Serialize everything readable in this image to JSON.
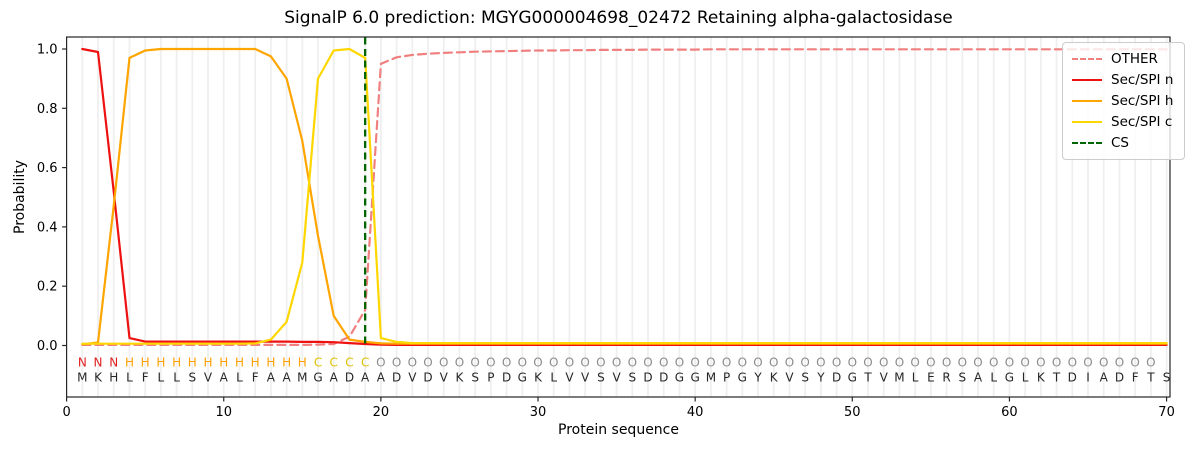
{
  "chart_data": {
    "type": "line",
    "title": "SignalP 6.0 prediction: MGYG000004698_02472 Retaining alpha-galactosidase",
    "xlabel": "Protein sequence",
    "ylabel": "Probability",
    "xlim": [
      0,
      70.3
    ],
    "ylim": [
      -0.174,
      1.041
    ],
    "x_ticks": [
      0,
      10,
      20,
      30,
      40,
      50,
      60,
      70
    ],
    "y_ticks": [
      "0.0",
      "0.2",
      "0.4",
      "0.6",
      "0.8",
      "1.0"
    ],
    "grid": "vertical line per residue",
    "legend_position": "upper right",
    "cs_position": 19,
    "cs_color": "#006400",
    "spine_color": "#262626",
    "grid_color": "#efefef",
    "sequence": "MKHLFLLSVALFAAMGADAADVDVKSPDGKLVVSVSDDGGMPGYKVSYDGTVMLERSALGLKTDIADFTS",
    "regions": "NNNHHHHHHHHHHHHCCCCOOOOOOOOOOOOOOOOOOOOOOOOOOOOOOOOOOOOOOOOOOOOOOOOOO",
    "region_colors": {
      "N": "#e02020",
      "H": "#ff9f00",
      "C": "#e0c000",
      "O": "#8c8c8c"
    },
    "sequence_color": "#262626",
    "legend": [
      "OTHER",
      "Sec/SPI n",
      "Sec/SPI h",
      "Sec/SPI c",
      "CS"
    ],
    "series": [
      {
        "name": "OTHER",
        "color": "#f08080",
        "dashed": true,
        "values": [
          0.002,
          0.002,
          0.002,
          0.002,
          0.002,
          0.002,
          0.002,
          0.002,
          0.002,
          0.002,
          0.002,
          0.002,
          0.002,
          0.002,
          0.002,
          0.003,
          0.005,
          0.03,
          0.12,
          0.95,
          0.972,
          0.98,
          0.984,
          0.987,
          0.989,
          0.991,
          0.992,
          0.993,
          0.994,
          0.995,
          0.995,
          0.996,
          0.996,
          0.997,
          0.997,
          0.997,
          0.998,
          0.998,
          0.998,
          0.998,
          0.999,
          0.999,
          0.999,
          0.999,
          0.999,
          0.999,
          0.999,
          0.999,
          0.999,
          0.999,
          0.999,
          0.999,
          0.999,
          0.999,
          0.999,
          0.999,
          0.999,
          0.999,
          0.999,
          0.999,
          0.999,
          0.999,
          0.999,
          0.999,
          0.999,
          0.999,
          0.999,
          0.999,
          0.999,
          0.999
        ]
      },
      {
        "name": "Sec/SPI n",
        "color": "#ee1111",
        "dashed": false,
        "values": [
          1.0,
          0.99,
          0.52,
          0.025,
          0.013,
          0.013,
          0.013,
          0.013,
          0.013,
          0.013,
          0.013,
          0.013,
          0.013,
          0.013,
          0.012,
          0.012,
          0.011,
          0.008,
          0.005,
          0.003,
          0.002,
          0.002,
          0.002,
          0.002,
          0.002,
          0.002,
          0.002,
          0.002,
          0.002,
          0.002,
          0.002,
          0.002,
          0.002,
          0.002,
          0.002,
          0.002,
          0.002,
          0.002,
          0.002,
          0.002,
          0.002,
          0.002,
          0.002,
          0.002,
          0.002,
          0.002,
          0.002,
          0.002,
          0.002,
          0.002,
          0.002,
          0.002,
          0.002,
          0.002,
          0.002,
          0.002,
          0.002,
          0.002,
          0.002,
          0.002,
          0.002,
          0.002,
          0.002,
          0.002,
          0.002,
          0.002,
          0.002,
          0.002,
          0.002,
          0.002
        ]
      },
      {
        "name": "Sec/SPI h",
        "color": "#ffa500",
        "dashed": false,
        "values": [
          0.004,
          0.01,
          0.47,
          0.97,
          0.995,
          1.0,
          1.0,
          1.0,
          1.0,
          1.0,
          1.0,
          1.0,
          0.975,
          0.9,
          0.69,
          0.37,
          0.1,
          0.02,
          0.012,
          0.007,
          0.006,
          0.006,
          0.006,
          0.006,
          0.006,
          0.006,
          0.006,
          0.006,
          0.006,
          0.006,
          0.006,
          0.006,
          0.006,
          0.006,
          0.006,
          0.006,
          0.006,
          0.006,
          0.006,
          0.006,
          0.006,
          0.006,
          0.006,
          0.006,
          0.006,
          0.006,
          0.006,
          0.006,
          0.006,
          0.006,
          0.006,
          0.006,
          0.006,
          0.006,
          0.006,
          0.006,
          0.006,
          0.006,
          0.006,
          0.006,
          0.006,
          0.006,
          0.006,
          0.006,
          0.006,
          0.006,
          0.006,
          0.006,
          0.006,
          0.006
        ]
      },
      {
        "name": "Sec/SPI c",
        "color": "#ffd700",
        "dashed": false,
        "values": [
          0.006,
          0.006,
          0.006,
          0.006,
          0.006,
          0.006,
          0.006,
          0.006,
          0.006,
          0.006,
          0.006,
          0.007,
          0.02,
          0.08,
          0.28,
          0.9,
          0.995,
          1.0,
          0.97,
          0.025,
          0.012,
          0.008,
          0.008,
          0.008,
          0.008,
          0.008,
          0.008,
          0.008,
          0.008,
          0.008,
          0.008,
          0.008,
          0.008,
          0.008,
          0.008,
          0.008,
          0.008,
          0.008,
          0.008,
          0.008,
          0.008,
          0.008,
          0.008,
          0.008,
          0.008,
          0.008,
          0.008,
          0.008,
          0.008,
          0.008,
          0.008,
          0.008,
          0.008,
          0.008,
          0.008,
          0.008,
          0.008,
          0.008,
          0.008,
          0.008,
          0.008,
          0.008,
          0.008,
          0.008,
          0.008,
          0.008,
          0.008,
          0.008,
          0.008,
          0.008
        ]
      }
    ]
  }
}
